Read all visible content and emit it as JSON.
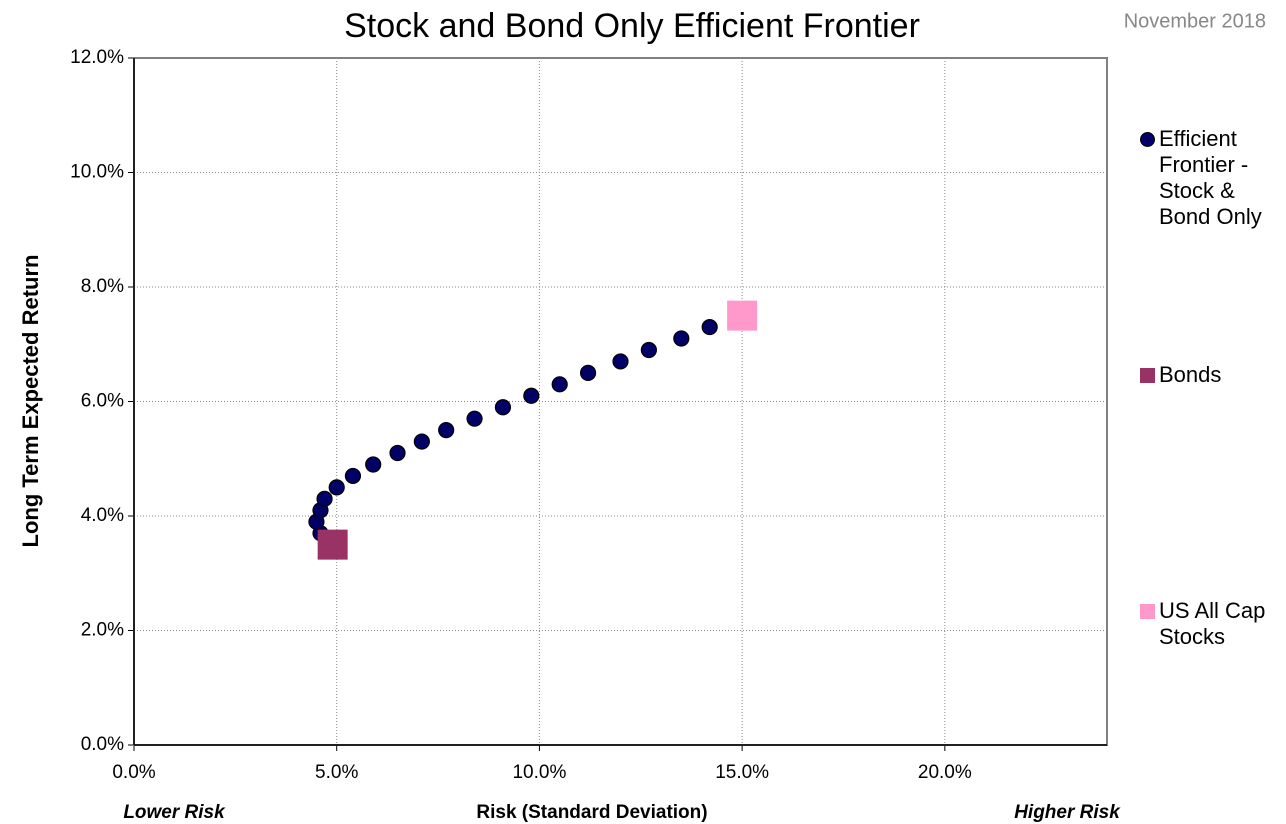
{
  "chart_data": {
    "type": "scatter",
    "title": "Stock and Bond Only Efficient Frontier",
    "subtitle": "November 2018",
    "x_label": "Risk (Standard Deviation)",
    "y_label": "Long Term Expected Return",
    "annotations": [
      "Lower Risk",
      "Higher Risk"
    ],
    "xlim": [
      0,
      24
    ],
    "ylim": [
      0,
      12
    ],
    "xticks": [
      {
        "value": 0,
        "label": "0.0%"
      },
      {
        "value": 5,
        "label": "5.0%"
      },
      {
        "value": 10,
        "label": "10.0%"
      },
      {
        "value": 15,
        "label": "15.0%"
      },
      {
        "value": 20,
        "label": "20.0%"
      }
    ],
    "yticks": [
      {
        "value": 0,
        "label": "0.0%"
      },
      {
        "value": 2,
        "label": "2.0%"
      },
      {
        "value": 4,
        "label": "4.0%"
      },
      {
        "value": 6,
        "label": "6.0%"
      },
      {
        "value": 8,
        "label": "8.0%"
      },
      {
        "value": 10,
        "label": "10.0%"
      },
      {
        "value": 12,
        "label": "12.0%"
      }
    ],
    "grid": true,
    "series": [
      {
        "name": "Efficient Frontier - Stock & Bond Only",
        "color": "#000066",
        "marker": "circle",
        "x": [
          4.6,
          4.5,
          4.6,
          4.7,
          5.0,
          5.4,
          5.9,
          6.5,
          7.1,
          7.7,
          8.4,
          9.1,
          9.8,
          10.5,
          11.2,
          12.0,
          12.7,
          13.5,
          14.2
        ],
        "values": [
          3.7,
          3.9,
          4.1,
          4.3,
          4.5,
          4.7,
          4.9,
          5.1,
          5.3,
          5.5,
          5.7,
          5.9,
          6.1,
          6.3,
          6.5,
          6.7,
          6.9,
          7.1,
          7.3
        ]
      },
      {
        "name": "Bonds",
        "color": "#993366",
        "marker": "square",
        "x": [
          4.9
        ],
        "values": [
          3.5
        ]
      },
      {
        "name": "US All Cap Stocks",
        "color": "#ff99cc",
        "marker": "square",
        "x": [
          15.0
        ],
        "values": [
          7.5
        ]
      }
    ]
  }
}
